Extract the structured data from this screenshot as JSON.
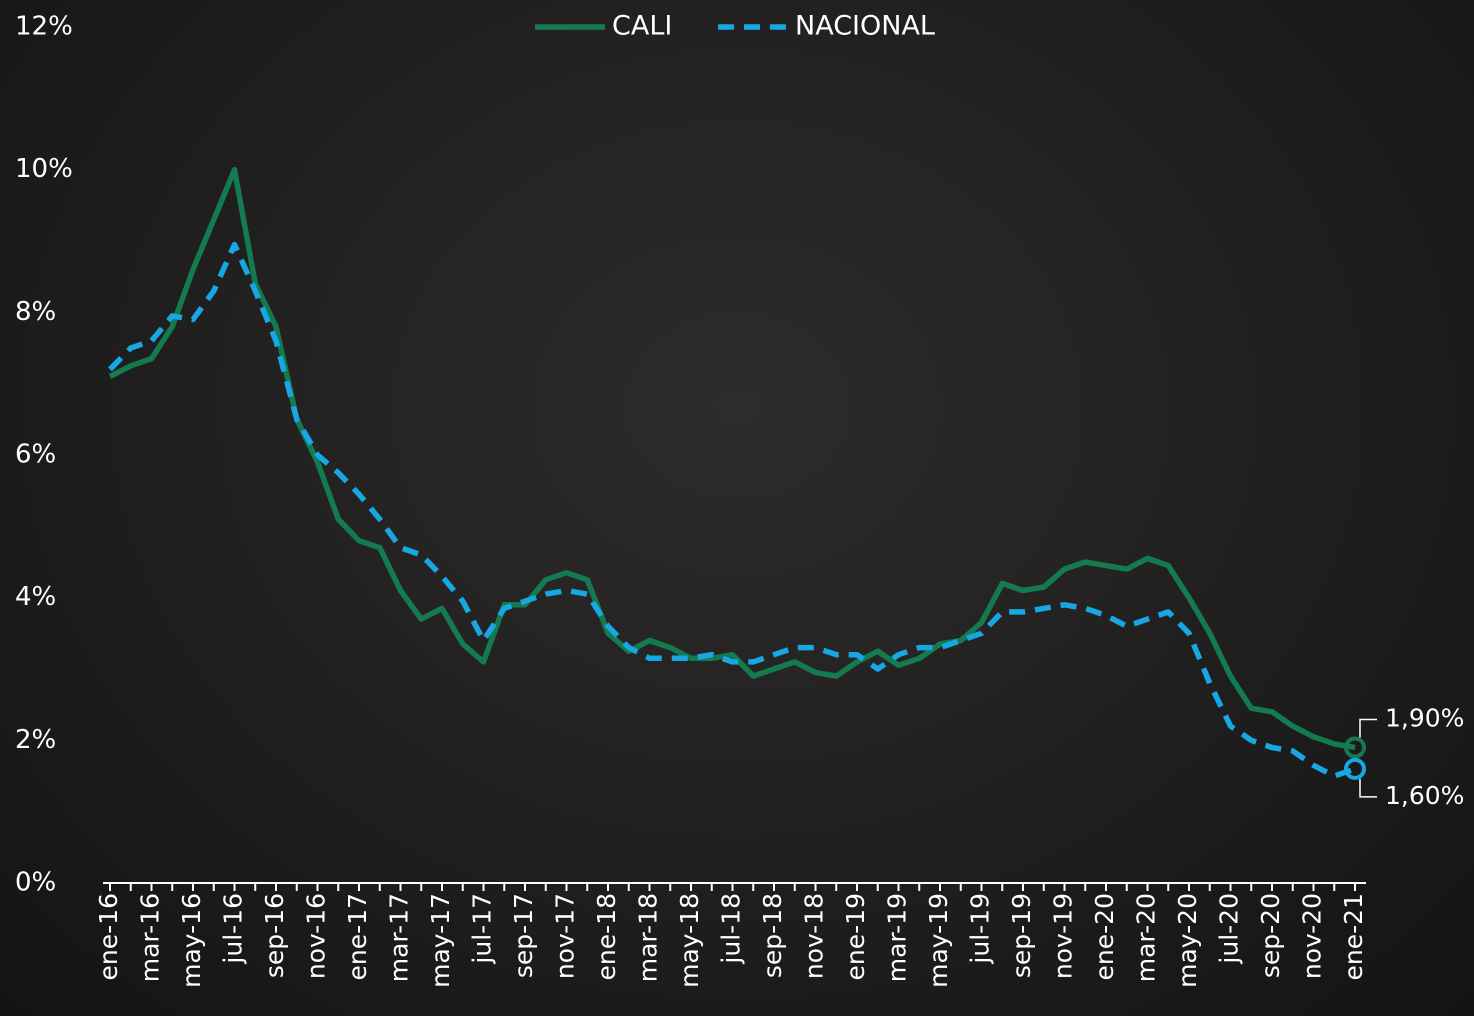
{
  "chart_data": {
    "type": "line",
    "categories": [
      "ene-16",
      null,
      "mar-16",
      null,
      "may-16",
      null,
      "jul-16",
      null,
      "sep-16",
      null,
      "nov-16",
      null,
      "ene-17",
      null,
      "mar-17",
      null,
      "may-17",
      null,
      "jul-17",
      null,
      "sep-17",
      null,
      "nov-17",
      null,
      "ene-18",
      null,
      "mar-18",
      null,
      "may-18",
      null,
      "jul-18",
      null,
      "sep-18",
      null,
      "nov-18",
      null,
      "ene-19",
      null,
      "mar-19",
      null,
      "may-19",
      null,
      "jul-19",
      null,
      "sep-19",
      null,
      "nov-19",
      null,
      "ene-20",
      null,
      "mar-20",
      null,
      "may-20",
      null,
      "jul-20",
      null,
      "sep-20",
      null,
      "nov-20",
      null,
      "ene-21"
    ],
    "series": [
      {
        "name": "CALI",
        "color": "#147a50",
        "dash": false,
        "values": [
          7.1,
          7.25,
          7.35,
          7.8,
          8.6,
          9.3,
          10.0,
          8.4,
          7.8,
          6.5,
          5.9,
          5.1,
          4.8,
          4.7,
          4.1,
          3.7,
          3.85,
          3.35,
          3.1,
          3.9,
          3.9,
          4.25,
          4.35,
          4.25,
          3.5,
          3.25,
          3.4,
          3.3,
          3.15,
          3.15,
          3.2,
          2.9,
          3.0,
          3.1,
          2.95,
          2.9,
          3.1,
          3.25,
          3.05,
          3.15,
          3.35,
          3.4,
          3.65,
          4.2,
          4.1,
          4.15,
          4.4,
          4.5,
          4.45,
          4.4,
          4.55,
          4.45,
          4.0,
          3.5,
          2.9,
          2.45,
          2.4,
          2.2,
          2.05,
          1.95,
          1.9
        ],
        "value_labels": [
          null,
          null,
          null,
          null,
          null,
          null,
          null,
          null,
          null,
          null,
          null,
          null,
          null,
          null,
          null,
          null,
          null,
          null,
          null,
          null,
          null,
          null,
          null,
          null,
          null,
          null,
          null,
          null,
          null,
          null,
          null,
          null,
          null,
          null,
          null,
          null,
          null,
          null,
          null,
          null,
          null,
          null,
          null,
          null,
          null,
          null,
          null,
          null,
          null,
          null,
          null,
          null,
          null,
          null,
          null,
          null,
          null,
          null,
          null,
          null,
          "1,90%"
        ]
      },
      {
        "name": "NACIONAL",
        "color": "#17a7e2",
        "dash": true,
        "values": [
          7.2,
          7.5,
          7.6,
          7.95,
          7.9,
          8.3,
          8.95,
          8.3,
          7.6,
          6.5,
          6.0,
          5.75,
          5.45,
          5.1,
          4.7,
          4.6,
          4.3,
          3.95,
          3.4,
          3.85,
          3.95,
          4.05,
          4.1,
          4.05,
          3.6,
          3.3,
          3.15,
          3.15,
          3.15,
          3.2,
          3.1,
          3.1,
          3.2,
          3.3,
          3.3,
          3.2,
          3.2,
          3.0,
          3.2,
          3.3,
          3.3,
          3.4,
          3.5,
          3.8,
          3.8,
          3.85,
          3.9,
          3.85,
          3.75,
          3.6,
          3.7,
          3.8,
          3.5,
          2.8,
          2.2,
          2.0,
          1.9,
          1.85,
          1.65,
          1.5,
          1.6
        ],
        "value_labels": [
          null,
          null,
          null,
          null,
          null,
          null,
          null,
          null,
          null,
          null,
          null,
          null,
          null,
          null,
          null,
          null,
          null,
          null,
          null,
          null,
          null,
          null,
          null,
          null,
          null,
          null,
          null,
          null,
          null,
          null,
          null,
          null,
          null,
          null,
          null,
          null,
          null,
          null,
          null,
          null,
          null,
          null,
          null,
          null,
          null,
          null,
          null,
          null,
          null,
          null,
          null,
          null,
          null,
          null,
          null,
          null,
          null,
          null,
          null,
          null,
          "1,60%"
        ]
      }
    ],
    "ylim": [
      0,
      12
    ],
    "yticks": [
      {
        "value": 0,
        "label": "0%"
      },
      {
        "value": 2,
        "label": "2%"
      },
      {
        "value": 4,
        "label": "4%"
      },
      {
        "value": 6,
        "label": "6%"
      },
      {
        "value": 8,
        "label": "8%"
      },
      {
        "value": 10,
        "label": "10%"
      },
      {
        "value": 12,
        "label": "12%"
      }
    ],
    "grid": false,
    "legend": "top"
  }
}
